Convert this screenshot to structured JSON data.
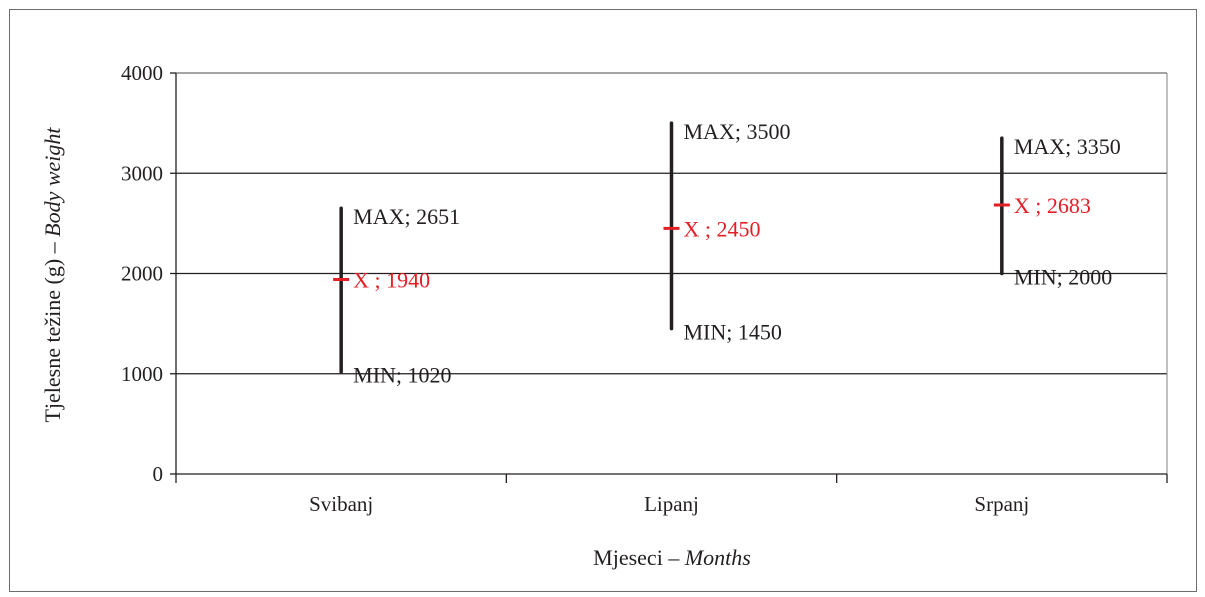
{
  "chart_data": {
    "type": "range",
    "categories": [
      "Svibanj",
      "Lipanj",
      "Srpanj"
    ],
    "series": [
      {
        "name": "MAX",
        "values": [
          2651,
          3500,
          3350
        ]
      },
      {
        "name": "X",
        "values": [
          1940,
          2450,
          2683
        ]
      },
      {
        "name": "MIN",
        "values": [
          1020,
          1450,
          2000
        ]
      }
    ],
    "max_labels": [
      "MAX; 2651",
      "MAX; 3500",
      "MAX; 3350"
    ],
    "mean_labels": [
      "X ; 1940",
      "X ; 2450",
      "X ; 2683"
    ],
    "min_labels": [
      "MIN; 1020",
      "MIN; 1450",
      "MIN; 2000"
    ],
    "ylim": [
      0,
      4000
    ],
    "y_ticks": [
      "0",
      "1000",
      "2000",
      "3000",
      "4000"
    ],
    "y_tick_values": [
      0,
      1000,
      2000,
      3000,
      4000
    ],
    "ylabel_plain": "Tjelesne težine (g) – ",
    "ylabel_italic": "Body weight",
    "xlabel_plain": "Mjeseci – ",
    "xlabel_italic": "Months",
    "grid": true,
    "colors": {
      "range": "#231f20",
      "mean": "#e31e24",
      "grid": "#231f20"
    }
  }
}
